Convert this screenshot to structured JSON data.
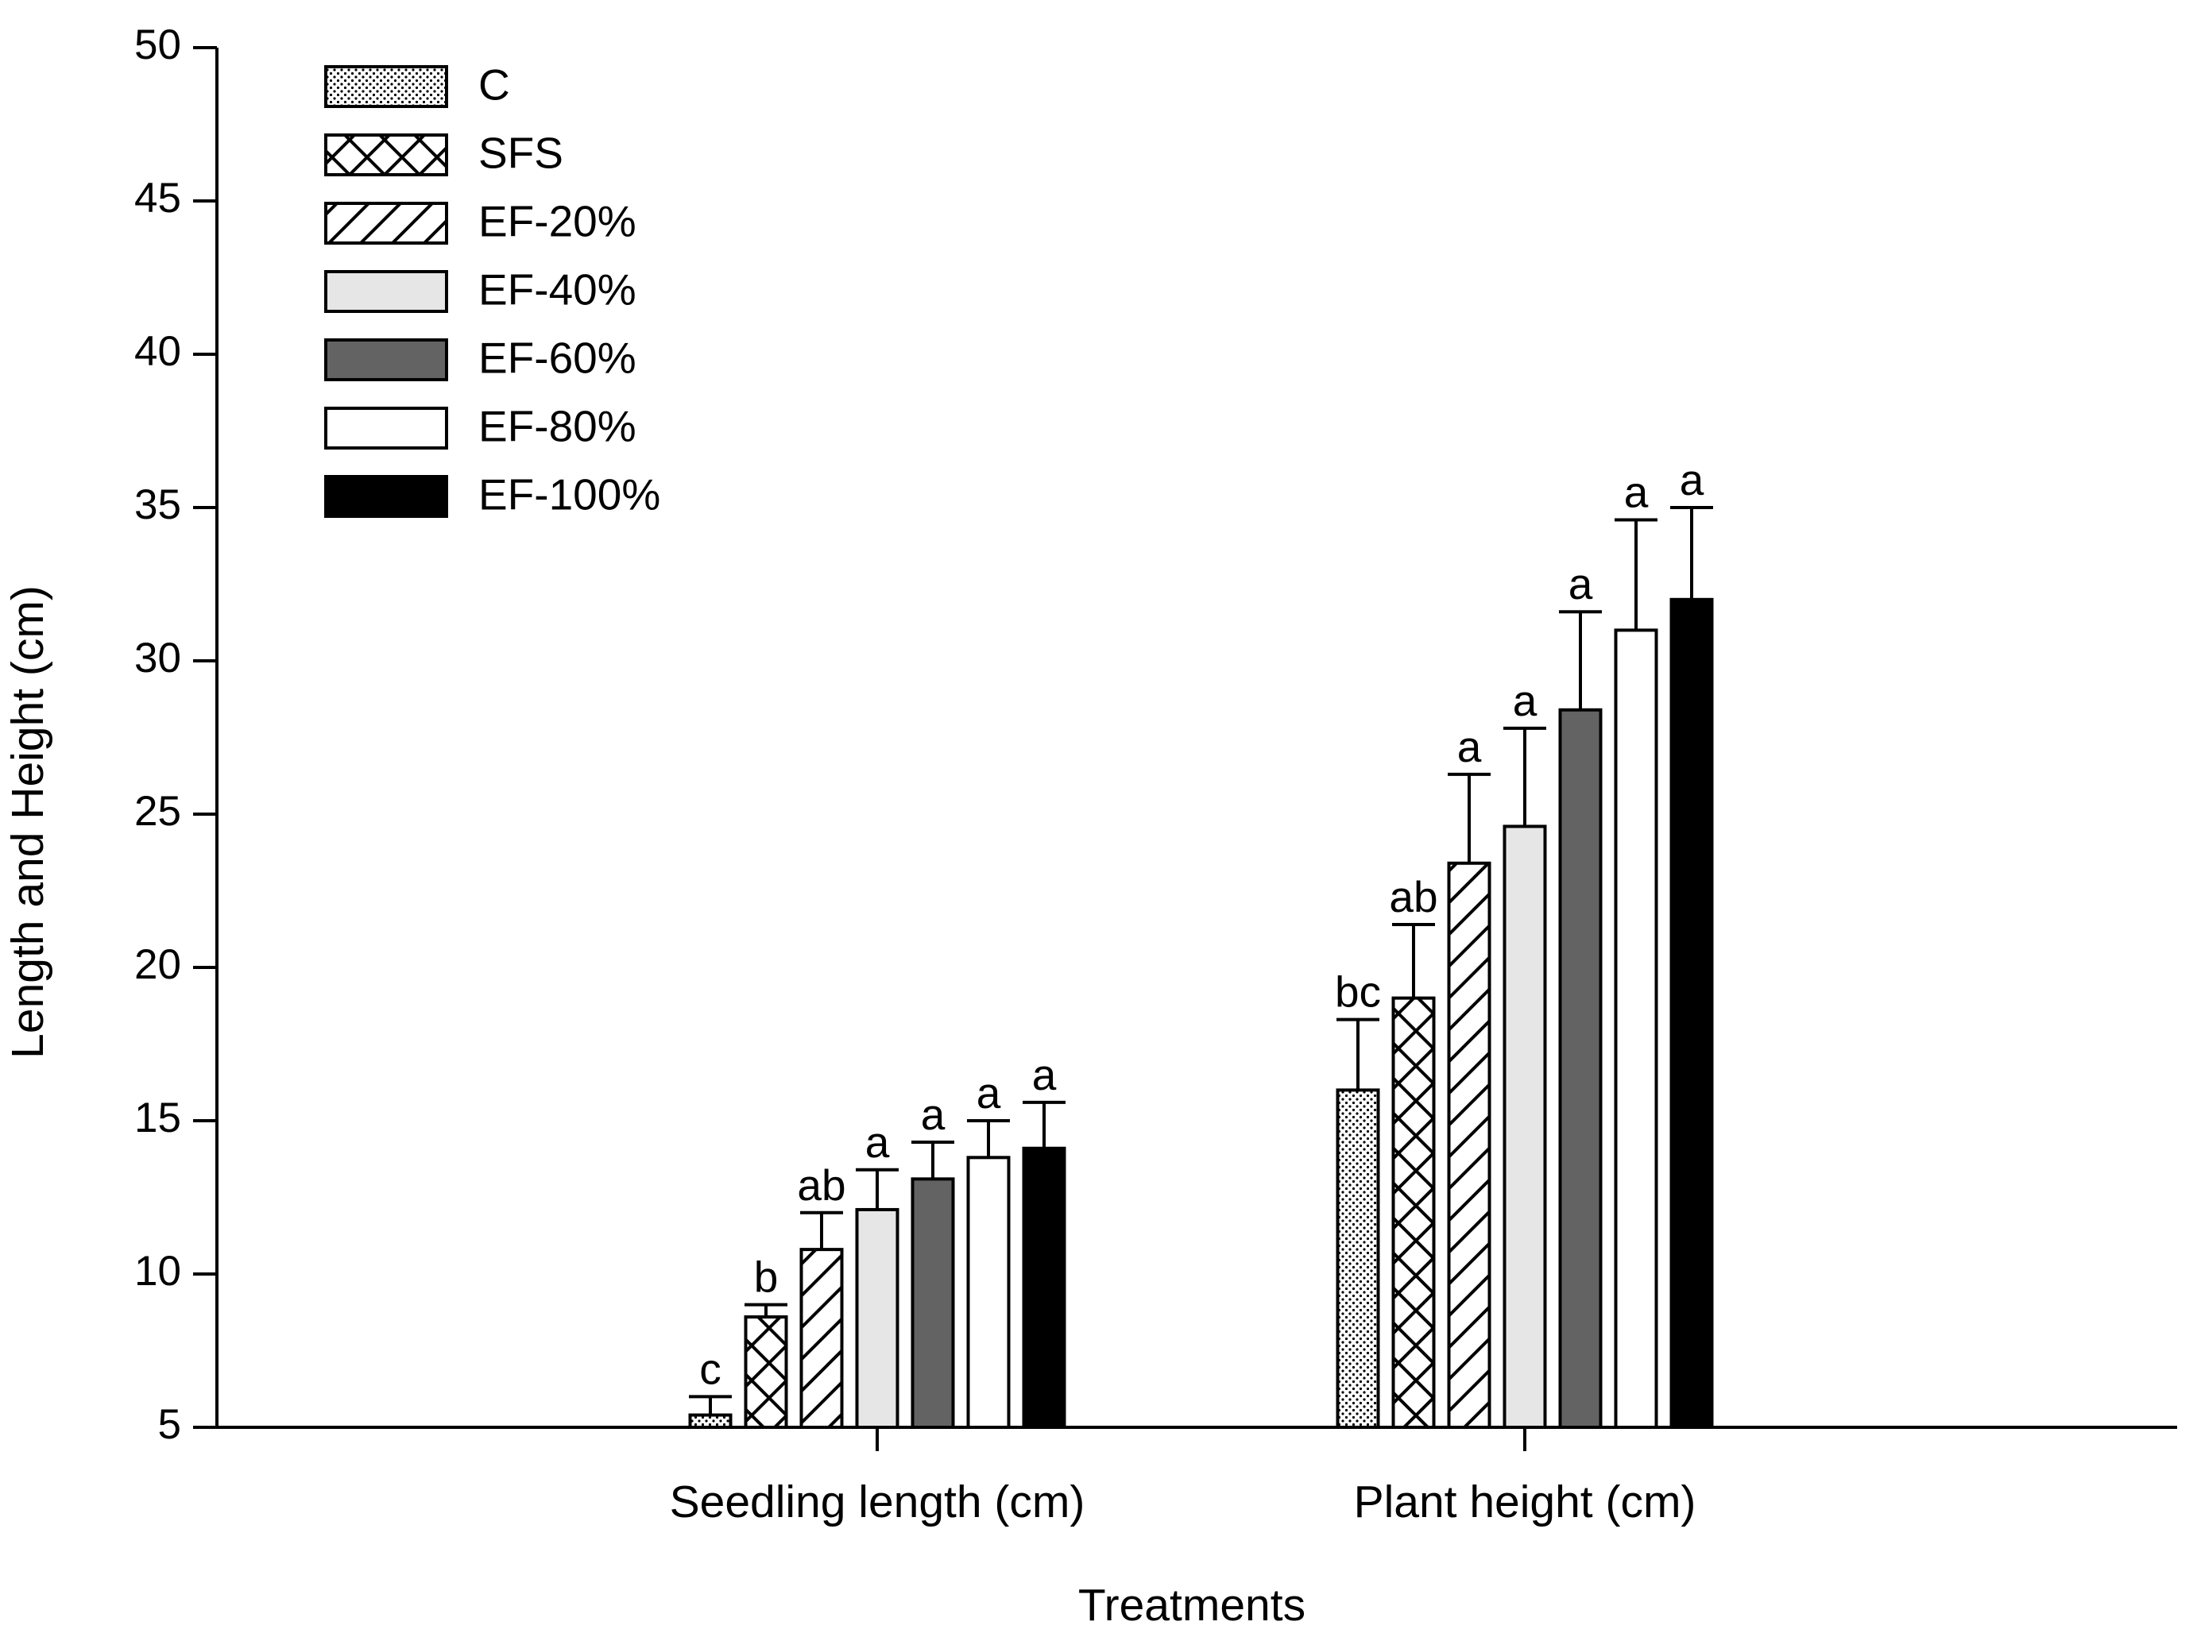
{
  "chart_data": {
    "type": "bar",
    "title": "",
    "xlabel": "Treatments",
    "ylabel": "Length and Height (cm)",
    "ylim": [
      5,
      50
    ],
    "yticks": [
      5,
      10,
      15,
      20,
      25,
      30,
      35,
      40,
      45,
      50
    ],
    "grid": false,
    "legend_position": "top-left",
    "categories": [
      "Seedling length (cm)",
      "Plant height (cm)"
    ],
    "series": [
      {
        "name": "C",
        "pattern": "dots",
        "values": [
          5.4,
          16.0
        ],
        "errors": [
          0.6,
          2.3
        ],
        "letters": [
          "c",
          "bc"
        ]
      },
      {
        "name": "SFS",
        "pattern": "crosshatch",
        "values": [
          8.6,
          19.0
        ],
        "errors": [
          0.4,
          2.4
        ],
        "letters": [
          "b",
          "ab"
        ]
      },
      {
        "name": "EF-20%",
        "pattern": "diagonal",
        "values": [
          10.8,
          23.4
        ],
        "errors": [
          1.2,
          2.9
        ],
        "letters": [
          "ab",
          "a"
        ]
      },
      {
        "name": "EF-40%",
        "pattern": "solid",
        "color": "#e6e6e6",
        "values": [
          12.1,
          24.6
        ],
        "errors": [
          1.3,
          3.2
        ],
        "letters": [
          "a",
          "a"
        ]
      },
      {
        "name": "EF-60%",
        "pattern": "solid",
        "color": "#636363",
        "values": [
          13.1,
          28.4
        ],
        "errors": [
          1.2,
          3.2
        ],
        "letters": [
          "a",
          "a"
        ]
      },
      {
        "name": "EF-80%",
        "pattern": "solid",
        "color": "#ffffff",
        "values": [
          13.8,
          31.0
        ],
        "errors": [
          1.2,
          3.6
        ],
        "letters": [
          "a",
          "a"
        ]
      },
      {
        "name": "EF-100%",
        "pattern": "solid",
        "color": "#000000",
        "values": [
          14.1,
          32.0
        ],
        "errors": [
          1.5,
          3.0
        ],
        "letters": [
          "a",
          "a"
        ]
      }
    ]
  }
}
